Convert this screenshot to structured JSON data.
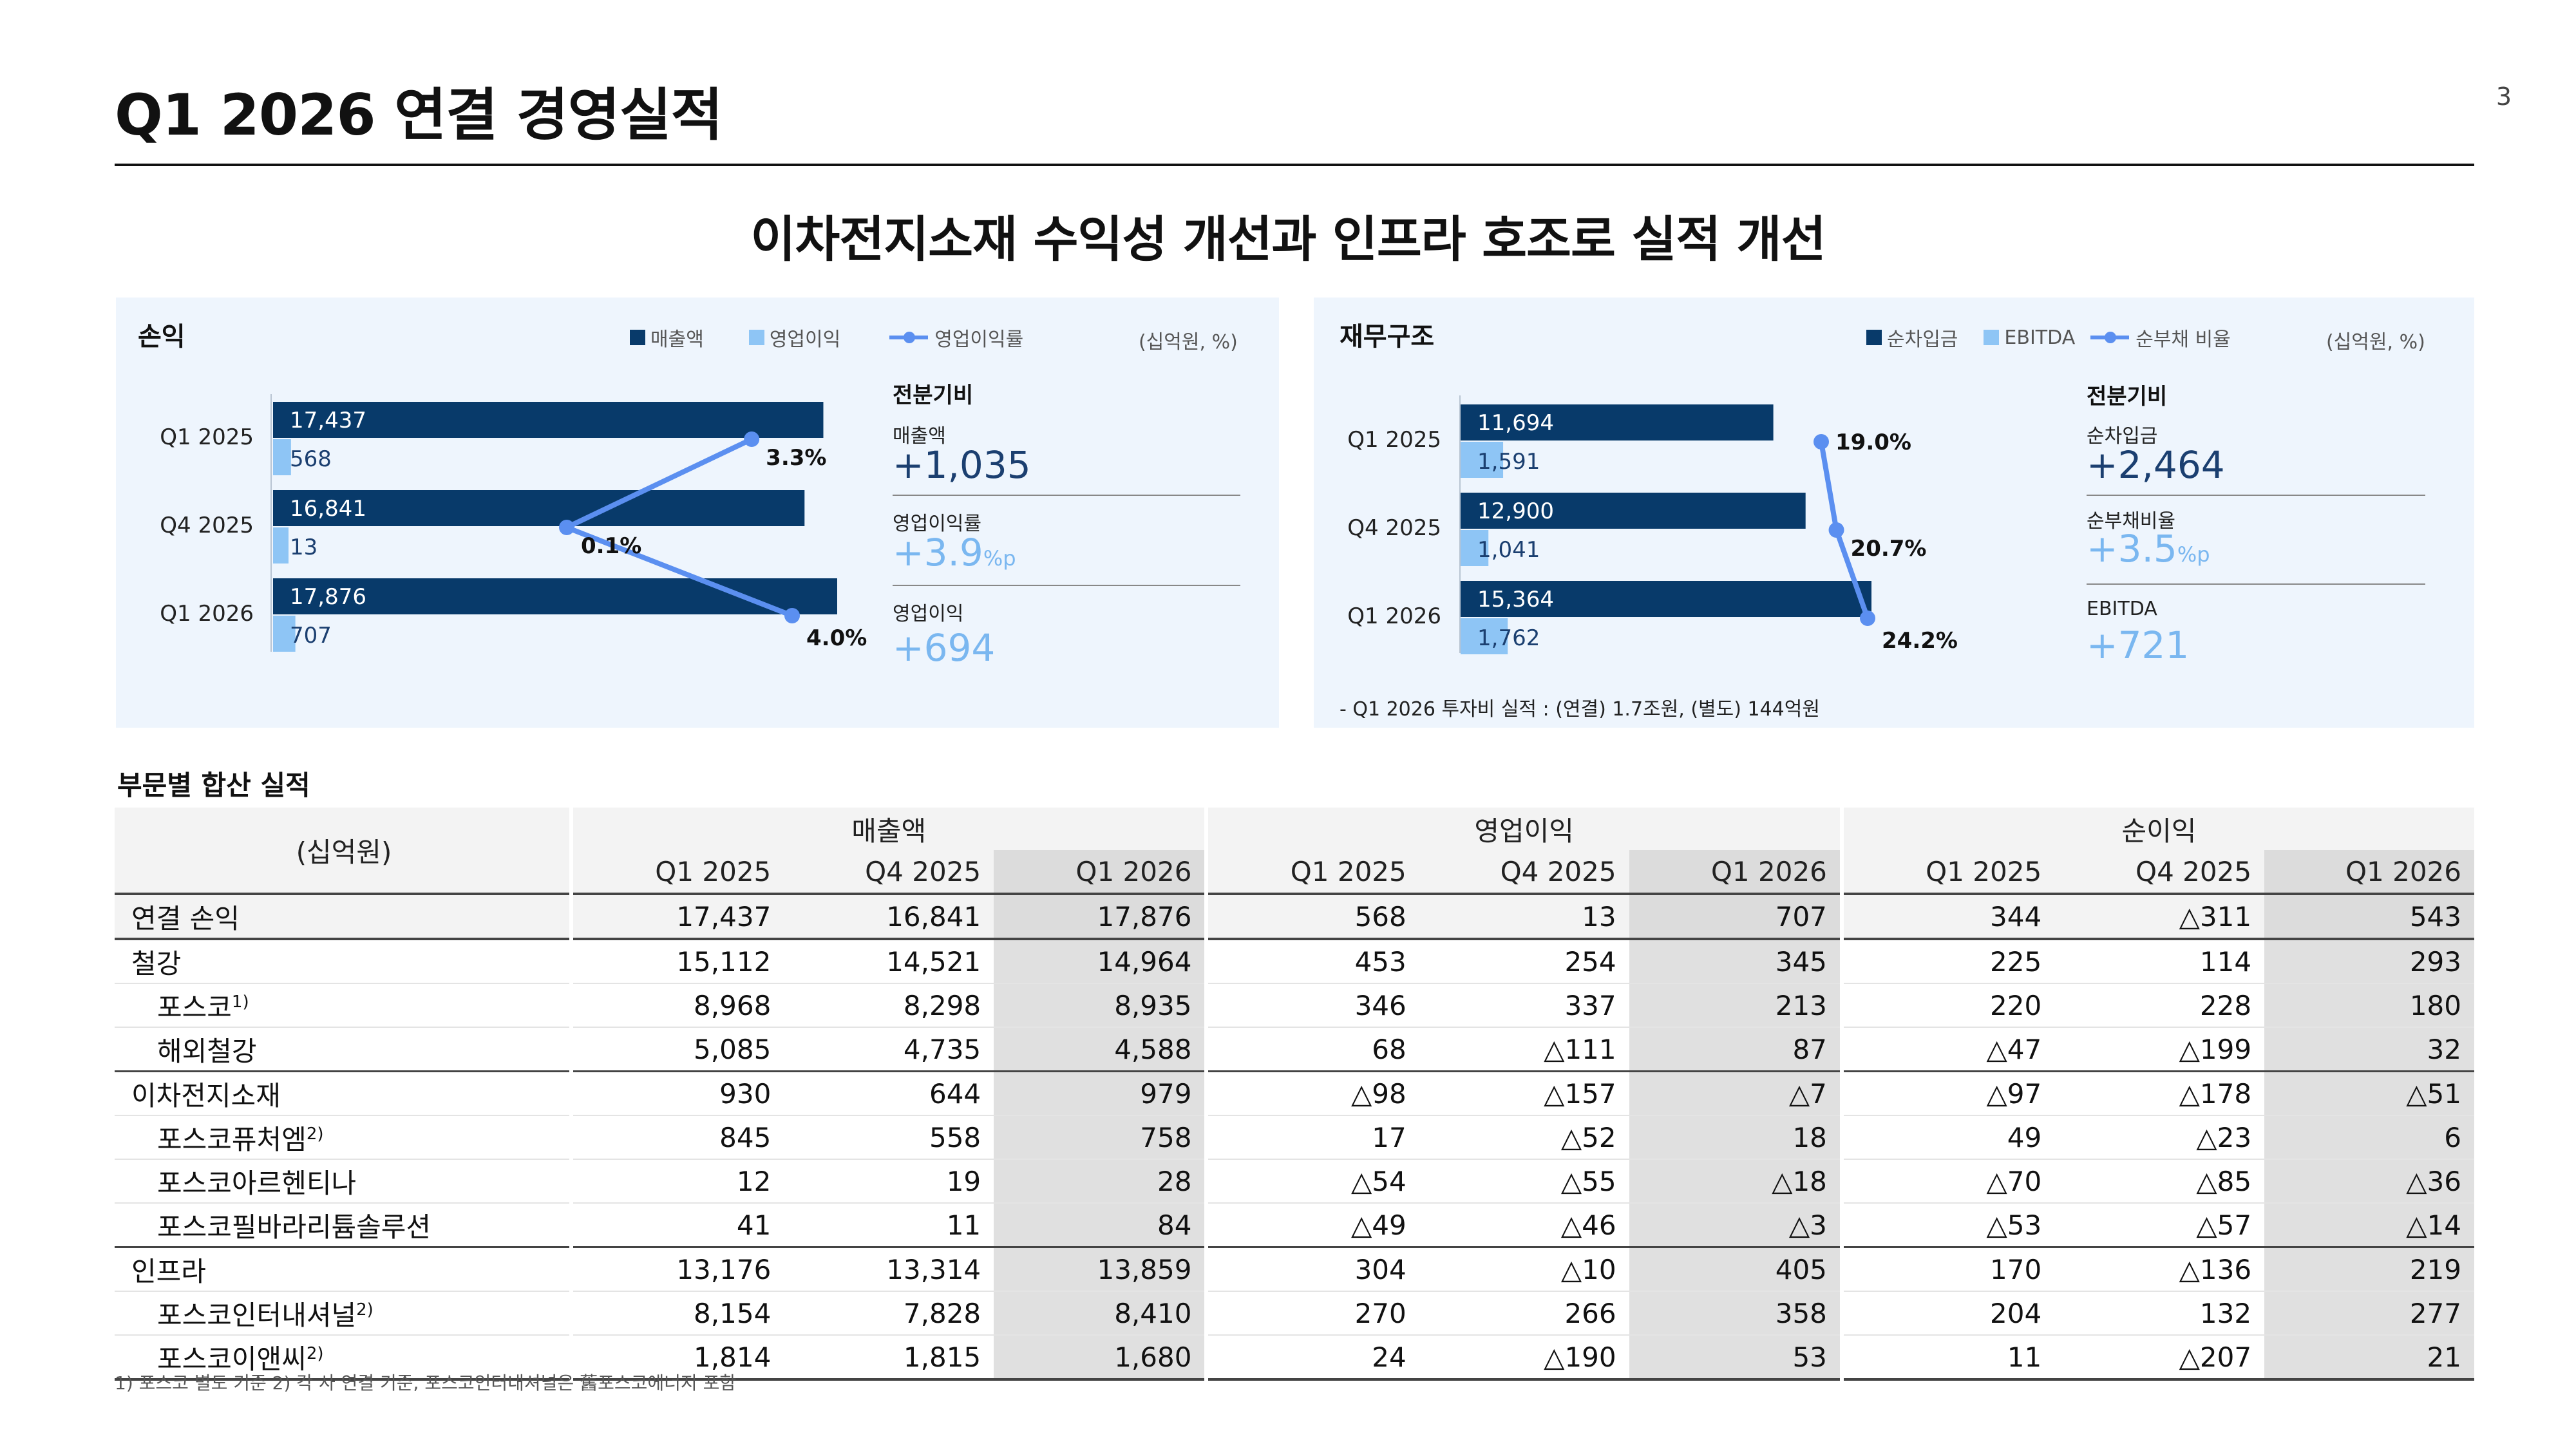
{
  "page": {
    "title": "Q1 2026 연결 경영실적",
    "page_number": "3",
    "headline": "이차전지소재 수익성 개선과 인프라 호조로 실적 개선"
  },
  "colors": {
    "navy": "#083a6a",
    "lightblue": "#8ec5f5",
    "line": "#5b8ff0",
    "panel_bg": "#eef5fd"
  },
  "left_panel": {
    "title": "손익",
    "legend": [
      "매출액",
      "영업이익",
      "영업이익률"
    ],
    "unit": "(십억원, %)",
    "diff_heading": "전분기비",
    "diffs": [
      {
        "label": "매출액",
        "value": "+1,035",
        "suffix": ""
      },
      {
        "label": "영업이익률",
        "value": "+3.9",
        "suffix": "%p"
      },
      {
        "label": "영업이익",
        "value": "+694",
        "suffix": ""
      }
    ]
  },
  "right_panel": {
    "title": "재무구조",
    "legend": [
      "순차입금",
      "EBITDA",
      "순부채 비율"
    ],
    "unit": "(십억원, %)",
    "diff_heading": "전분기비",
    "diffs": [
      {
        "label": "순차입금",
        "value": "+2,464",
        "suffix": ""
      },
      {
        "label": "순부채비율",
        "value": "+3.5",
        "suffix": "%p"
      },
      {
        "label": "EBITDA",
        "value": "+721",
        "suffix": ""
      }
    ],
    "note": "-  Q1 2026 투자비 실적 : (연결) 1.7조원, (별도) 144억원"
  },
  "chart_data": [
    {
      "type": "bar",
      "orientation": "horizontal",
      "title": "손익",
      "categories": [
        "Q1 2025",
        "Q4 2025",
        "Q1 2026"
      ],
      "series": [
        {
          "name": "매출액",
          "values": [
            17437,
            16841,
            17876
          ],
          "labels": [
            "17,437",
            "16,841",
            "17,876"
          ]
        },
        {
          "name": "영업이익",
          "values": [
            568,
            13,
            707
          ],
          "labels": [
            "568",
            "13",
            "707"
          ]
        },
        {
          "name": "영업이익률",
          "type": "line",
          "values": [
            3.3,
            0.1,
            4.0
          ],
          "labels": [
            "3.3%",
            "0.1%",
            "4.0%"
          ]
        }
      ],
      "unit": "(십억원, %)",
      "legend": "top-right"
    },
    {
      "type": "bar",
      "orientation": "horizontal",
      "title": "재무구조",
      "categories": [
        "Q1 2025",
        "Q4 2025",
        "Q1 2026"
      ],
      "series": [
        {
          "name": "순차입금",
          "values": [
            11694,
            12900,
            15364
          ],
          "labels": [
            "11,694",
            "12,900",
            "15,364"
          ]
        },
        {
          "name": "EBITDA",
          "values": [
            1591,
            1041,
            1762
          ],
          "labels": [
            "1,591",
            "1,041",
            "1,762"
          ]
        },
        {
          "name": "순부채 비율",
          "type": "line",
          "values": [
            19.0,
            20.7,
            24.2
          ],
          "labels": [
            "19.0%",
            "20.7%",
            "24.2%"
          ]
        }
      ],
      "unit": "(십억원, %)",
      "legend": "top-right"
    },
    {
      "type": "table",
      "title": "부문별 합산 실적",
      "unit": "(십억원)",
      "groups": [
        "매출액",
        "영업이익",
        "순이익"
      ],
      "periods": [
        "Q1 2025",
        "Q4 2025",
        "Q1 2026"
      ],
      "rows": [
        {
          "name": "연결 손익",
          "sup": "",
          "level": "total",
          "values": [
            "17,437",
            "16,841",
            "17,876",
            "568",
            "13",
            "707",
            "344",
            "△311",
            "543"
          ]
        },
        {
          "name": "철강",
          "sup": "",
          "level": "major",
          "values": [
            "15,112",
            "14,521",
            "14,964",
            "453",
            "254",
            "345",
            "225",
            "114",
            "293"
          ]
        },
        {
          "name": "포스코",
          "sup": "1)",
          "level": "sub",
          "values": [
            "8,968",
            "8,298",
            "8,935",
            "346",
            "337",
            "213",
            "220",
            "228",
            "180"
          ]
        },
        {
          "name": "해외철강",
          "sup": "",
          "level": "sub",
          "values": [
            "5,085",
            "4,735",
            "4,588",
            "68",
            "△111",
            "87",
            "△47",
            "△199",
            "32"
          ]
        },
        {
          "name": "이차전지소재",
          "sup": "",
          "level": "major",
          "values": [
            "930",
            "644",
            "979",
            "△98",
            "△157",
            "△7",
            "△97",
            "△178",
            "△51"
          ]
        },
        {
          "name": "포스코퓨처엠",
          "sup": "2)",
          "level": "sub",
          "values": [
            "845",
            "558",
            "758",
            "17",
            "△52",
            "18",
            "49",
            "△23",
            "6"
          ]
        },
        {
          "name": "포스코아르헨티나",
          "sup": "",
          "level": "sub",
          "values": [
            "12",
            "19",
            "28",
            "△54",
            "△55",
            "△18",
            "△70",
            "△85",
            "△36"
          ]
        },
        {
          "name": "포스코필바라리튬솔루션",
          "sup": "",
          "level": "sub",
          "values": [
            "41",
            "11",
            "84",
            "△49",
            "△46",
            "△3",
            "△53",
            "△57",
            "△14"
          ]
        },
        {
          "name": "인프라",
          "sup": "",
          "level": "major",
          "values": [
            "13,176",
            "13,314",
            "13,859",
            "304",
            "△10",
            "405",
            "170",
            "△136",
            "219"
          ]
        },
        {
          "name": "포스코인터내셔널",
          "sup": "2)",
          "level": "sub",
          "values": [
            "8,154",
            "7,828",
            "8,410",
            "270",
            "266",
            "358",
            "204",
            "132",
            "277"
          ]
        },
        {
          "name": "포스코이앤씨",
          "sup": "2)",
          "level": "sub",
          "values": [
            "1,814",
            "1,815",
            "1,680",
            "24",
            "△190",
            "53",
            "11",
            "△207",
            "21"
          ]
        }
      ]
    }
  ],
  "footnote": "1) 포스코 별도 기준   2) 각 사 연결 기준, 포스코인터내셔널은 舊포스코에너지 포함"
}
